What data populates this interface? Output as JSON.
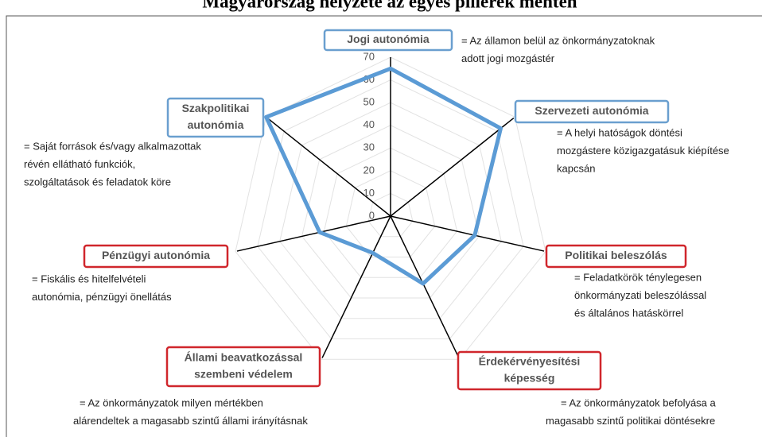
{
  "chart_data": {
    "type": "radar",
    "title": "Magyarország helyzete az egyes pillérek mentén",
    "axes": [
      {
        "label": [
          "Jogi autonómia"
        ],
        "border": "#6a9fcf",
        "description": [
          "= Az államon belül az   önkormányzatoknak",
          "adott jogi mozgástér"
        ]
      },
      {
        "label": [
          "Szervezeti autonómia"
        ],
        "border": "#6a9fcf",
        "description": [
          "= A helyi hatóságok döntési",
          "mozgástere közigazgatásuk kiépítése",
          "kapcsán"
        ]
      },
      {
        "label": [
          "Politikai beleszólás"
        ],
        "border": "#d0262c",
        "description": [
          "= Feladatkörök ténylegesen",
          "önkormányzati beleszólással",
          "és általános hatáskörrel"
        ]
      },
      {
        "label": [
          "Érdekérvényesítési",
          "képesség"
        ],
        "border": "#d0262c",
        "description": [
          "= Az önkormányzatok befolyása a",
          "magasabb szintű politikai döntésekre"
        ]
      },
      {
        "label": [
          "Állami beavatkozással",
          "szembeni védelem"
        ],
        "border": "#d0262c",
        "description": [
          "= Az önkormányzatok milyen mértékben",
          "alárendeltek a magasabb szintű állami irányításnak"
        ]
      },
      {
        "label": [
          "Pénzügyi autonómia"
        ],
        "border": "#d0262c",
        "description": [
          "= Fiskális és hitelfelvételi",
          "autonómia, pénzügyi önellátás"
        ]
      },
      {
        "label": [
          "Szakpolitikai",
          "autonómia"
        ],
        "border": "#6a9fcf",
        "description": [
          "= Saját források és/vagy alkalmazottak",
          "révén ellátható funkciók,",
          "szolgáltatások és feladatok köre"
        ]
      }
    ],
    "series": [
      {
        "color": "#5b9bd5",
        "values": [
          65,
          62,
          38,
          33,
          18,
          32,
          70
        ]
      }
    ],
    "rlim": [
      0,
      70
    ],
    "rticks": [
      0,
      10,
      20,
      30,
      40,
      50,
      60,
      70
    ],
    "grid": true
  }
}
